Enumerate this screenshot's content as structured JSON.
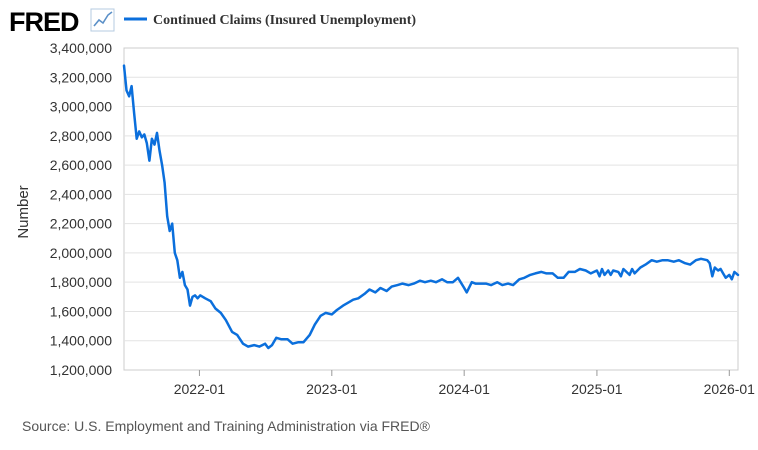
{
  "logo": {
    "text": "FRED",
    "icon": "trend-line-icon"
  },
  "source_note": "Source: U.S. Employment and Training Administration via FRED®",
  "colors": {
    "series": "#0b6fdc",
    "grid": "#e3e3e3",
    "plot_border": "#cccccc"
  },
  "chart_data": {
    "type": "line",
    "title": "",
    "xlabel": "",
    "ylabel": "Number",
    "ylim": [
      1200000,
      3400000
    ],
    "xlim": [
      "2021-06-07",
      "2026-01-25"
    ],
    "y_ticks": [
      1200000,
      1400000,
      1600000,
      1800000,
      2000000,
      2200000,
      2400000,
      2600000,
      2800000,
      3000000,
      3200000,
      3400000
    ],
    "y_tick_labels": [
      "1,200,000",
      "1,400,000",
      "1,600,000",
      "1,800,000",
      "2,000,000",
      "2,200,000",
      "2,400,000",
      "2,600,000",
      "2,800,000",
      "3,000,000",
      "3,200,000",
      "3,400,000"
    ],
    "x_ticks": [
      "2022-01-01",
      "2023-01-01",
      "2024-01-01",
      "2025-01-01",
      "2026-01-01"
    ],
    "x_tick_labels": [
      "2022-01",
      "2023-01",
      "2024-01",
      "2025-01",
      "2026-01"
    ],
    "grid": "horizontal",
    "legend": "top-left",
    "series": [
      {
        "name": "Continued Claims (Insured Unemployment)",
        "color": "#0b6fdc",
        "points": [
          [
            "2021-06-07",
            3280000
          ],
          [
            "2021-06-14",
            3110000
          ],
          [
            "2021-06-21",
            3070000
          ],
          [
            "2021-06-28",
            3140000
          ],
          [
            "2021-07-05",
            2950000
          ],
          [
            "2021-07-12",
            2780000
          ],
          [
            "2021-07-19",
            2830000
          ],
          [
            "2021-07-26",
            2790000
          ],
          [
            "2021-08-02",
            2810000
          ],
          [
            "2021-08-09",
            2750000
          ],
          [
            "2021-08-16",
            2630000
          ],
          [
            "2021-08-23",
            2780000
          ],
          [
            "2021-08-30",
            2740000
          ],
          [
            "2021-09-06",
            2820000
          ],
          [
            "2021-09-13",
            2700000
          ],
          [
            "2021-09-20",
            2600000
          ],
          [
            "2021-09-27",
            2480000
          ],
          [
            "2021-10-04",
            2250000
          ],
          [
            "2021-10-11",
            2150000
          ],
          [
            "2021-10-18",
            2200000
          ],
          [
            "2021-10-25",
            2000000
          ],
          [
            "2021-11-01",
            1950000
          ],
          [
            "2021-11-08",
            1830000
          ],
          [
            "2021-11-15",
            1870000
          ],
          [
            "2021-11-22",
            1780000
          ],
          [
            "2021-11-29",
            1750000
          ],
          [
            "2021-12-06",
            1640000
          ],
          [
            "2021-12-13",
            1700000
          ],
          [
            "2021-12-20",
            1710000
          ],
          [
            "2021-12-27",
            1690000
          ],
          [
            "2022-01-03",
            1710000
          ],
          [
            "2022-01-10",
            1700000
          ],
          [
            "2022-01-17",
            1690000
          ],
          [
            "2022-02-01",
            1670000
          ],
          [
            "2022-02-14",
            1620000
          ],
          [
            "2022-03-01",
            1590000
          ],
          [
            "2022-03-15",
            1540000
          ],
          [
            "2022-04-01",
            1460000
          ],
          [
            "2022-04-15",
            1440000
          ],
          [
            "2022-05-01",
            1380000
          ],
          [
            "2022-05-15",
            1360000
          ],
          [
            "2022-06-01",
            1370000
          ],
          [
            "2022-06-15",
            1360000
          ],
          [
            "2022-07-01",
            1380000
          ],
          [
            "2022-07-10",
            1350000
          ],
          [
            "2022-07-20",
            1370000
          ],
          [
            "2022-08-01",
            1420000
          ],
          [
            "2022-08-15",
            1410000
          ],
          [
            "2022-09-01",
            1410000
          ],
          [
            "2022-09-15",
            1380000
          ],
          [
            "2022-10-01",
            1390000
          ],
          [
            "2022-10-15",
            1390000
          ],
          [
            "2022-11-01",
            1440000
          ],
          [
            "2022-11-15",
            1510000
          ],
          [
            "2022-12-01",
            1570000
          ],
          [
            "2022-12-15",
            1590000
          ],
          [
            "2023-01-01",
            1580000
          ],
          [
            "2023-01-15",
            1610000
          ],
          [
            "2023-02-01",
            1640000
          ],
          [
            "2023-02-15",
            1660000
          ],
          [
            "2023-03-01",
            1680000
          ],
          [
            "2023-03-15",
            1690000
          ],
          [
            "2023-04-01",
            1720000
          ],
          [
            "2023-04-15",
            1750000
          ],
          [
            "2023-05-01",
            1730000
          ],
          [
            "2023-05-15",
            1760000
          ],
          [
            "2023-06-01",
            1740000
          ],
          [
            "2023-06-15",
            1770000
          ],
          [
            "2023-07-01",
            1780000
          ],
          [
            "2023-07-15",
            1790000
          ],
          [
            "2023-08-01",
            1780000
          ],
          [
            "2023-08-15",
            1790000
          ],
          [
            "2023-09-01",
            1810000
          ],
          [
            "2023-09-15",
            1800000
          ],
          [
            "2023-10-01",
            1810000
          ],
          [
            "2023-10-15",
            1800000
          ],
          [
            "2023-11-01",
            1820000
          ],
          [
            "2023-11-15",
            1800000
          ],
          [
            "2023-12-01",
            1800000
          ],
          [
            "2023-12-15",
            1830000
          ],
          [
            "2024-01-01",
            1760000
          ],
          [
            "2024-01-08",
            1730000
          ],
          [
            "2024-01-22",
            1800000
          ],
          [
            "2024-02-01",
            1790000
          ],
          [
            "2024-02-15",
            1790000
          ],
          [
            "2024-03-01",
            1790000
          ],
          [
            "2024-03-15",
            1780000
          ],
          [
            "2024-04-01",
            1800000
          ],
          [
            "2024-04-15",
            1780000
          ],
          [
            "2024-05-01",
            1790000
          ],
          [
            "2024-05-15",
            1780000
          ],
          [
            "2024-06-01",
            1820000
          ],
          [
            "2024-06-15",
            1830000
          ],
          [
            "2024-07-01",
            1850000
          ],
          [
            "2024-07-15",
            1860000
          ],
          [
            "2024-08-01",
            1870000
          ],
          [
            "2024-08-15",
            1860000
          ],
          [
            "2024-09-01",
            1860000
          ],
          [
            "2024-09-15",
            1830000
          ],
          [
            "2024-10-01",
            1830000
          ],
          [
            "2024-10-15",
            1870000
          ],
          [
            "2024-11-01",
            1870000
          ],
          [
            "2024-11-15",
            1890000
          ],
          [
            "2024-12-01",
            1880000
          ],
          [
            "2024-12-15",
            1860000
          ],
          [
            "2025-01-01",
            1880000
          ],
          [
            "2025-01-08",
            1840000
          ],
          [
            "2025-01-15",
            1890000
          ],
          [
            "2025-01-22",
            1850000
          ],
          [
            "2025-02-01",
            1880000
          ],
          [
            "2025-02-08",
            1850000
          ],
          [
            "2025-02-15",
            1880000
          ],
          [
            "2025-03-01",
            1870000
          ],
          [
            "2025-03-08",
            1840000
          ],
          [
            "2025-03-15",
            1890000
          ],
          [
            "2025-04-01",
            1850000
          ],
          [
            "2025-04-08",
            1890000
          ],
          [
            "2025-04-15",
            1860000
          ],
          [
            "2025-05-01",
            1900000
          ],
          [
            "2025-05-15",
            1920000
          ],
          [
            "2025-06-01",
            1950000
          ],
          [
            "2025-06-15",
            1940000
          ],
          [
            "2025-07-01",
            1950000
          ],
          [
            "2025-07-15",
            1950000
          ],
          [
            "2025-08-01",
            1940000
          ],
          [
            "2025-08-15",
            1950000
          ],
          [
            "2025-09-01",
            1930000
          ],
          [
            "2025-09-15",
            1920000
          ],
          [
            "2025-10-01",
            1950000
          ],
          [
            "2025-10-15",
            1960000
          ],
          [
            "2025-11-01",
            1950000
          ],
          [
            "2025-11-08",
            1930000
          ],
          [
            "2025-11-15",
            1840000
          ],
          [
            "2025-11-22",
            1900000
          ],
          [
            "2025-12-01",
            1880000
          ],
          [
            "2025-12-08",
            1890000
          ],
          [
            "2025-12-15",
            1860000
          ],
          [
            "2025-12-22",
            1830000
          ],
          [
            "2026-01-01",
            1850000
          ],
          [
            "2026-01-08",
            1820000
          ],
          [
            "2026-01-15",
            1870000
          ],
          [
            "2026-01-25",
            1850000
          ]
        ]
      }
    ]
  }
}
